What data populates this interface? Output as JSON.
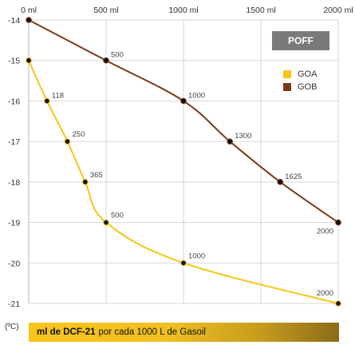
{
  "chart_data": {
    "type": "line",
    "x_ticks": [
      "0 ml",
      "500 ml",
      "1000 ml",
      "1500 ml",
      "2000 ml"
    ],
    "x_tick_values": [
      0,
      500,
      1000,
      1500,
      2000
    ],
    "y_ticks": [
      "-14",
      "-15",
      "-16",
      "-17",
      "-18",
      "-19",
      "-20",
      "-21"
    ],
    "y_tick_values": [
      -14,
      -15,
      -16,
      -17,
      -18,
      -19,
      -20,
      -21
    ],
    "xlim": [
      0,
      2000
    ],
    "ylim": [
      -21,
      -14
    ],
    "grid": true,
    "legend_position": "top-right",
    "series": [
      {
        "name": "GOA",
        "color": "#f5c518",
        "x": [
          0,
          118,
          250,
          365,
          500,
          1000,
          2000
        ],
        "y": [
          -15,
          -16,
          -17,
          -18,
          -19,
          -20,
          -21
        ],
        "labels": [
          "",
          "118",
          "250",
          "365",
          "500",
          "1000",
          "2000"
        ]
      },
      {
        "name": "GOB",
        "color": "#7b3a17",
        "x": [
          0,
          500,
          1000,
          1300,
          1625,
          2000
        ],
        "y": [
          -14,
          -15,
          -16,
          -17,
          -18,
          -19
        ],
        "labels": [
          "",
          "500",
          "1000",
          "1300",
          "1625",
          "2000"
        ]
      }
    ]
  },
  "badge": "POFF",
  "unit": "(ºC)",
  "banner": {
    "bold": "ml de DCF-21",
    "rest": "por cada 1000 L de Gasoil"
  }
}
